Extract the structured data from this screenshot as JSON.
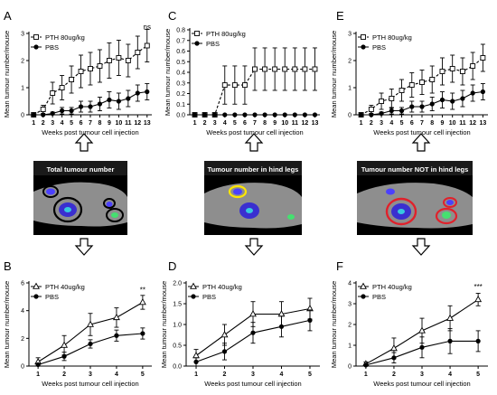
{
  "figure": {
    "arrow_color": "#ffffff",
    "image_bg": "#000000",
    "mouse_body_color": "#8e8e8e",
    "images": [
      {
        "title": "Total tumour number",
        "ring_color": "#000000"
      },
      {
        "title": "Tumour number in hind legs",
        "ring_color": "#ffe600"
      },
      {
        "title": "Tumour number NOT in hind legs",
        "ring_color": "#e0212b"
      }
    ]
  },
  "chart_data": [
    {
      "panel": "A",
      "type": "line",
      "ylabel": "Mean tumour number/mouse",
      "xlabel": "Weeks post tumour cell injection",
      "ylim": [
        0,
        3
      ],
      "yticks": [
        0,
        1,
        2,
        3
      ],
      "x": [
        1,
        2,
        3,
        4,
        5,
        6,
        7,
        8,
        9,
        10,
        11,
        12,
        13
      ],
      "series": [
        {
          "name": "PTH 80ug/kg",
          "marker": "open-square",
          "dashed": true,
          "values": [
            0,
            0.2,
            0.8,
            1.0,
            1.3,
            1.6,
            1.7,
            1.8,
            2.0,
            2.1,
            2.0,
            2.3,
            2.55
          ],
          "err": [
            0,
            0.15,
            0.4,
            0.45,
            0.5,
            0.6,
            0.6,
            0.6,
            0.65,
            0.65,
            0.6,
            0.6,
            0.6
          ]
        },
        {
          "name": "PBS",
          "marker": "filled-circle",
          "dashed": false,
          "values": [
            0,
            0,
            0.05,
            0.15,
            0.15,
            0.3,
            0.3,
            0.4,
            0.55,
            0.5,
            0.6,
            0.8,
            0.85
          ],
          "err": [
            0,
            0,
            0.05,
            0.12,
            0.12,
            0.2,
            0.2,
            0.25,
            0.3,
            0.3,
            0.3,
            0.3,
            0.3
          ]
        }
      ],
      "annotations": [
        {
          "x": 13,
          "y": 3.15,
          "text": "ns"
        }
      ]
    },
    {
      "panel": "C",
      "type": "line",
      "ylabel": "Mean tumour number/mouse",
      "xlabel": "Weeks post tumour cell injection",
      "ylim": [
        0,
        0.8
      ],
      "yticks": [
        0,
        0.1,
        0.2,
        0.3,
        0.4,
        0.5,
        0.6,
        0.7,
        0.8
      ],
      "tick_decimals": 1,
      "x": [
        1,
        2,
        3,
        4,
        5,
        6,
        7,
        8,
        9,
        10,
        11,
        12,
        13
      ],
      "series": [
        {
          "name": "PTH 80ug/kg",
          "marker": "open-square",
          "dashed": true,
          "values": [
            0,
            0,
            0,
            0.28,
            0.28,
            0.28,
            0.43,
            0.43,
            0.43,
            0.43,
            0.43,
            0.43,
            0.43
          ],
          "err": [
            0,
            0,
            0,
            0.18,
            0.18,
            0.18,
            0.2,
            0.2,
            0.2,
            0.2,
            0.2,
            0.2,
            0.2
          ]
        },
        {
          "name": "PBS",
          "marker": "filled-circle",
          "dashed": false,
          "values": [
            0,
            0,
            0,
            0,
            0,
            0,
            0,
            0,
            0,
            0,
            0,
            0,
            0
          ],
          "err": [
            0,
            0,
            0,
            0,
            0,
            0,
            0,
            0,
            0,
            0,
            0,
            0,
            0
          ]
        }
      ],
      "annotations": []
    },
    {
      "panel": "E",
      "type": "line",
      "ylabel": "Mean tumour number/mouse",
      "xlabel": "Weeks post tumour cell injection",
      "ylim": [
        0,
        3
      ],
      "yticks": [
        0,
        1,
        2,
        3
      ],
      "x": [
        1,
        2,
        3,
        4,
        5,
        6,
        7,
        8,
        9,
        10,
        11,
        12,
        13
      ],
      "series": [
        {
          "name": "PTH 80ug/kg",
          "marker": "open-square",
          "dashed": true,
          "values": [
            0,
            0.2,
            0.5,
            0.6,
            0.9,
            1.1,
            1.2,
            1.3,
            1.6,
            1.7,
            1.6,
            1.8,
            2.1
          ],
          "err": [
            0,
            0.15,
            0.3,
            0.35,
            0.4,
            0.45,
            0.45,
            0.5,
            0.5,
            0.5,
            0.5,
            0.5,
            0.5
          ]
        },
        {
          "name": "PBS",
          "marker": "filled-circle",
          "dashed": false,
          "values": [
            0,
            0,
            0.05,
            0.15,
            0.15,
            0.3,
            0.3,
            0.4,
            0.55,
            0.5,
            0.6,
            0.8,
            0.85
          ],
          "err": [
            0,
            0,
            0.05,
            0.12,
            0.12,
            0.2,
            0.2,
            0.25,
            0.3,
            0.3,
            0.3,
            0.3,
            0.3
          ]
        }
      ],
      "annotations": []
    },
    {
      "panel": "B",
      "type": "line",
      "ylabel": "Mean tumour number/mouse",
      "xlabel": "Weeks post tumour cell injection",
      "ylim": [
        0,
        6
      ],
      "yticks": [
        0,
        2,
        4,
        6
      ],
      "x": [
        1,
        2,
        3,
        4,
        5
      ],
      "series": [
        {
          "name": "PTH 40ug/kg",
          "marker": "open-triangle",
          "dashed": false,
          "values": [
            0.3,
            1.5,
            3.0,
            3.5,
            4.6
          ],
          "err": [
            0.3,
            0.7,
            0.8,
            0.7,
            0.5
          ]
        },
        {
          "name": "PBS",
          "marker": "filled-circle",
          "dashed": false,
          "values": [
            0.1,
            0.7,
            1.6,
            2.2,
            2.35
          ],
          "err": [
            0.1,
            0.3,
            0.3,
            0.4,
            0.4
          ]
        }
      ],
      "annotations": [
        {
          "x": 5,
          "y": 5.3,
          "text": "**"
        }
      ]
    },
    {
      "panel": "D",
      "type": "line",
      "ylabel": "Mean tumour number/mouse",
      "xlabel": "Weeks post tumour cell injection",
      "ylim": [
        0,
        2
      ],
      "yticks": [
        0,
        0.5,
        1,
        1.5,
        2
      ],
      "tick_decimals": 1,
      "x": [
        1,
        2,
        3,
        4,
        5
      ],
      "series": [
        {
          "name": "PTH 40ug/kg",
          "marker": "open-triangle",
          "dashed": false,
          "values": [
            0.25,
            0.75,
            1.25,
            1.25,
            1.38
          ],
          "err": [
            0.15,
            0.25,
            0.3,
            0.3,
            0.25
          ]
        },
        {
          "name": "PBS",
          "marker": "filled-circle",
          "dashed": false,
          "values": [
            0.1,
            0.35,
            0.8,
            0.95,
            1.1
          ],
          "err": [
            0.1,
            0.2,
            0.25,
            0.25,
            0.25
          ]
        }
      ],
      "annotations": []
    },
    {
      "panel": "F",
      "type": "line",
      "ylabel": "Mean tumour number/mouse",
      "xlabel": "Weeks post tumour cell injection",
      "ylim": [
        0,
        4
      ],
      "yticks": [
        0,
        1,
        2,
        3,
        4
      ],
      "x": [
        1,
        2,
        3,
        4,
        5
      ],
      "series": [
        {
          "name": "PTH 40ug/kg",
          "marker": "open-triangle",
          "dashed": false,
          "values": [
            0.1,
            0.85,
            1.7,
            2.3,
            3.2
          ],
          "err": [
            0.1,
            0.5,
            0.6,
            0.6,
            0.3
          ]
        },
        {
          "name": "PBS",
          "marker": "filled-circle",
          "dashed": false,
          "values": [
            0.05,
            0.4,
            0.9,
            1.2,
            1.2
          ],
          "err": [
            0.05,
            0.25,
            0.5,
            0.6,
            0.5
          ]
        }
      ],
      "annotations": [
        {
          "x": 5,
          "y": 3.7,
          "text": "***"
        }
      ]
    }
  ]
}
